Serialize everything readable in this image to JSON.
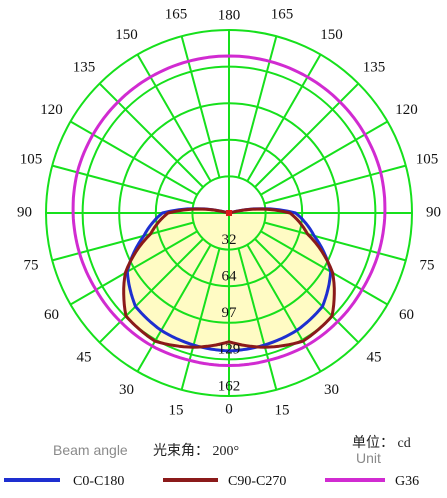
{
  "chart_data": {
    "type": "polar",
    "angle_labels": {
      "top": "180",
      "upper_left": [
        "165",
        "150",
        "135",
        "120",
        "105"
      ],
      "upper_right": [
        "165",
        "150",
        "135",
        "120",
        "105"
      ],
      "left_90": "90",
      "right_90": "90",
      "lower_left": [
        "75",
        "60",
        "45",
        "30",
        "15"
      ],
      "lower_right": [
        "75",
        "60",
        "45",
        "30",
        "15"
      ],
      "bottom": "0"
    },
    "radial_labels": [
      "32",
      "64",
      "97",
      "129",
      "162"
    ],
    "radial_max": 162,
    "angles_deg": [
      0,
      15,
      30,
      45,
      60,
      75,
      90,
      105,
      120,
      135,
      150,
      165,
      180
    ],
    "series": [
      {
        "name": "C0-C180",
        "color": "#1e2fd0",
        "values": [
          122,
          121,
          120,
          117,
          104,
          78,
          59,
          0,
          0,
          0,
          0,
          0,
          0
        ]
      },
      {
        "name": "C90-C270",
        "color": "#8b1a1a",
        "values": [
          114,
          123,
          131,
          129,
          106,
          72,
          54,
          0,
          0,
          0,
          0,
          0,
          0
        ]
      },
      {
        "name": "G36",
        "color": "#d12bd1",
        "values": [
          135,
          135,
          136,
          136,
          136,
          137,
          138,
          139,
          139,
          139,
          139,
          139,
          139
        ]
      }
    ],
    "colors": {
      "grid": "#16e01c",
      "fill": "#fffbc4",
      "marker": "#e0191e"
    }
  },
  "footer": {
    "beam_angle_label": "Beam angle",
    "beam_angle_value": "光束角：  200°",
    "unit_cn": "单位： cd",
    "unit_en": "Unit"
  }
}
